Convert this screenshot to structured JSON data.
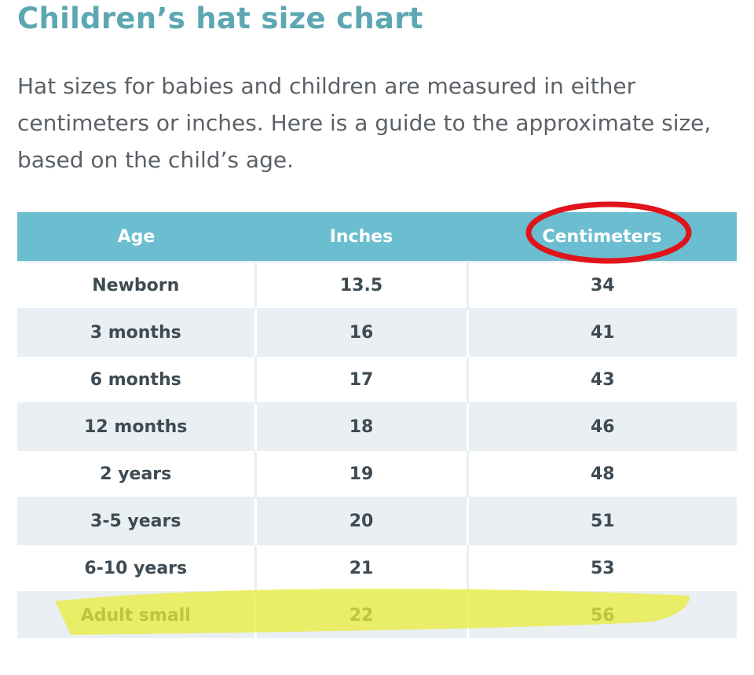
{
  "header": {
    "title": "Children’s hat size chart"
  },
  "intro": "Hat sizes for babies and children are measured in either centimeters or inches. Here is a guide to the approximate size, based on the child’s age.",
  "table": {
    "columns": [
      "Age",
      "Inches",
      "Centimeters"
    ],
    "rows": [
      [
        "Newborn",
        13.5,
        34
      ],
      [
        "3 months",
        16,
        41
      ],
      [
        "6 months",
        17,
        43
      ],
      [
        "12 months",
        18,
        46
      ],
      [
        "2 years",
        19,
        48
      ],
      [
        "3-5 years",
        20,
        51
      ],
      [
        "6-10 years",
        21,
        53
      ],
      [
        "Adult small",
        22,
        56
      ]
    ]
  }
}
